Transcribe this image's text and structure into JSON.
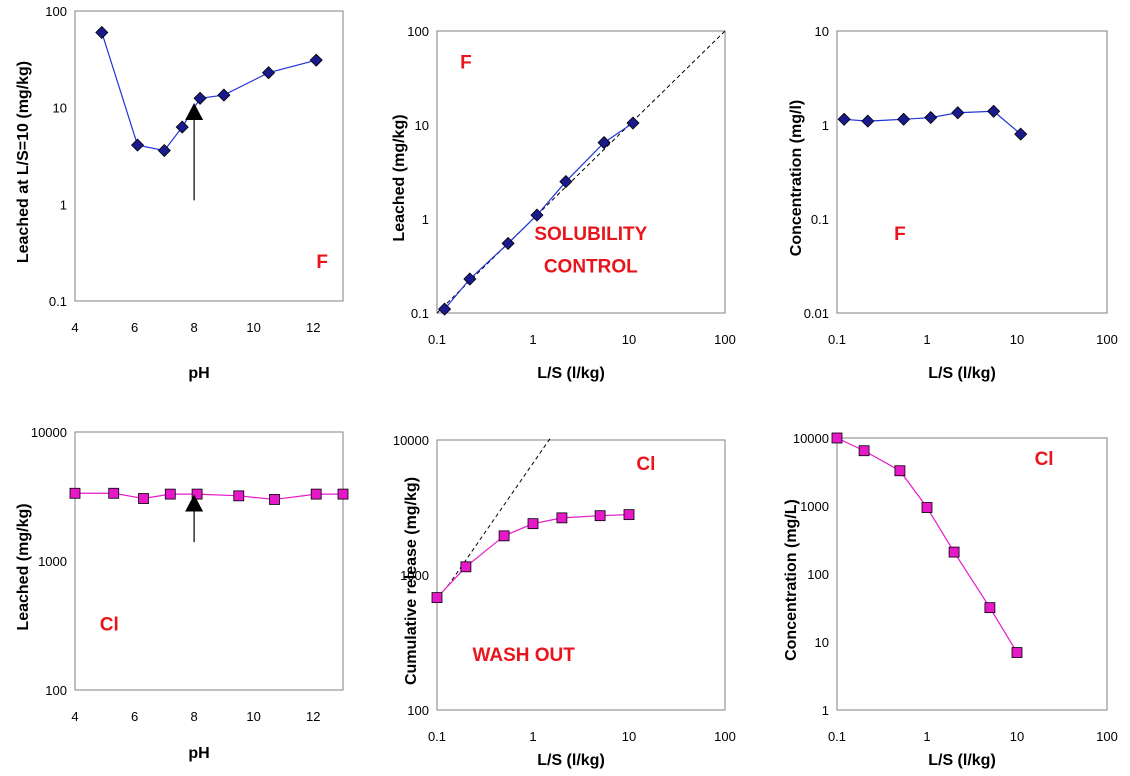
{
  "colors": {
    "f_series": "#1a1a8c",
    "f_series_line": "#1f35d6",
    "cl_series": "#e619c8",
    "cl_series_line": "#e619c8",
    "annotation": "#e8161c",
    "reference_line": "#000000"
  },
  "chart_data": [
    {
      "type": "scatter",
      "element": "F",
      "x_scale": "linear",
      "y_scale": "log",
      "xlim": [
        4,
        13
      ],
      "ylim": [
        0.1,
        100
      ],
      "xticks": [
        "4",
        "6",
        "8",
        "10",
        "12"
      ],
      "yticks": [
        "0.1",
        "1",
        "10",
        "100"
      ],
      "xlabel": "pH",
      "ylabel": "Leached at L/S=10 (mg/kg)",
      "annotations": [
        {
          "text": "F",
          "x": 12.3,
          "y": 0.22
        }
      ],
      "series": [
        {
          "marker": "diamond",
          "points": [
            [
              4.9,
              60
            ],
            [
              6.1,
              4.1
            ],
            [
              7.0,
              3.6
            ],
            [
              7.6,
              6.3
            ],
            [
              8.2,
              12.5
            ],
            [
              9.0,
              13.5
            ],
            [
              10.5,
              23
            ],
            [
              12.1,
              31
            ]
          ]
        }
      ],
      "arrow": {
        "x": 8.0,
        "y_from": 1.1,
        "y_to": 8.0
      }
    },
    {
      "type": "scatter",
      "element": "F",
      "x_scale": "log",
      "y_scale": "log",
      "xlim": [
        0.1,
        100
      ],
      "ylim": [
        0.1,
        100
      ],
      "xticks": [
        "0.1",
        "1",
        "10",
        "100"
      ],
      "yticks": [
        "0.1",
        "1",
        "10",
        "100"
      ],
      "xlabel": "L/S (l/kg)",
      "ylabel": "Leached (mg/kg)",
      "annotations": [
        {
          "text": "F",
          "x": 0.2,
          "y": 40
        },
        {
          "text": "SOLUBILITY",
          "x": 4.0,
          "y": 0.6
        },
        {
          "text": "CONTROL",
          "x": 4.0,
          "y": 0.27
        }
      ],
      "series": [
        {
          "marker": "diamond",
          "points": [
            [
              0.12,
              0.11
            ],
            [
              0.22,
              0.23
            ],
            [
              0.55,
              0.55
            ],
            [
              1.1,
              1.1
            ],
            [
              2.2,
              2.5
            ],
            [
              5.5,
              6.5
            ],
            [
              11,
              10.5
            ]
          ]
        }
      ],
      "reference_line": {
        "style": "dashed",
        "points": [
          [
            0.1,
            0.1
          ],
          [
            100,
            100
          ]
        ]
      }
    },
    {
      "type": "scatter",
      "element": "F",
      "x_scale": "log",
      "y_scale": "log",
      "xlim": [
        0.1,
        100
      ],
      "ylim": [
        0.01,
        10
      ],
      "xticks": [
        "0.1",
        "1",
        "10",
        "100"
      ],
      "yticks": [
        "0.01",
        "0.1",
        "1",
        "10"
      ],
      "xlabel": "L/S (l/kg)",
      "ylabel": "Concentration (mg/l)",
      "annotations": [
        {
          "text": "F",
          "x": 0.5,
          "y": 0.06
        }
      ],
      "series": [
        {
          "marker": "diamond",
          "points": [
            [
              0.12,
              1.15
            ],
            [
              0.22,
              1.1
            ],
            [
              0.55,
              1.15
            ],
            [
              1.1,
              1.2
            ],
            [
              2.2,
              1.35
            ],
            [
              5.5,
              1.4
            ],
            [
              11,
              0.8
            ]
          ]
        }
      ]
    },
    {
      "type": "scatter",
      "element": "Cl",
      "x_scale": "linear",
      "y_scale": "log",
      "xlim": [
        4,
        13
      ],
      "ylim": [
        100,
        10000
      ],
      "xticks": [
        "4",
        "6",
        "8",
        "10",
        "12"
      ],
      "yticks": [
        "100",
        "1000",
        "10000"
      ],
      "xlabel": "pH",
      "ylabel": "Leached (mg/kg)",
      "annotations": [
        {
          "text": "Cl",
          "x": 5.15,
          "y": 290
        }
      ],
      "series": [
        {
          "marker": "square",
          "points": [
            [
              4.0,
              3350
            ],
            [
              5.3,
              3350
            ],
            [
              6.3,
              3050
            ],
            [
              7.2,
              3300
            ],
            [
              8.1,
              3300
            ],
            [
              9.5,
              3200
            ],
            [
              10.7,
              3000
            ],
            [
              12.1,
              3300
            ],
            [
              13.0,
              3300
            ]
          ]
        }
      ],
      "arrow": {
        "x": 8.0,
        "y_from": 1400,
        "y_to": 2550
      }
    },
    {
      "type": "scatter",
      "element": "Cl",
      "x_scale": "log",
      "y_scale": "log",
      "xlim": [
        0.1,
        100
      ],
      "ylim": [
        100,
        10000
      ],
      "xticks": [
        "0.1",
        "1",
        "10",
        "100"
      ],
      "yticks": [
        "100",
        "1000",
        "10000"
      ],
      "xlabel": "L/S (l/kg)",
      "ylabel": "Cumulative release (mg/kg)",
      "annotations": [
        {
          "text": "Cl",
          "x": 15,
          "y": 6000
        },
        {
          "text": "WASH OUT",
          "x": 0.8,
          "y": 230
        }
      ],
      "series": [
        {
          "marker": "square",
          "points": [
            [
              0.1,
              680
            ],
            [
              0.2,
              1150
            ],
            [
              0.5,
              1950
            ],
            [
              1.0,
              2400
            ],
            [
              2.0,
              2650
            ],
            [
              5.0,
              2750
            ],
            [
              10,
              2800
            ]
          ]
        }
      ],
      "reference_line": {
        "style": "dashed",
        "points": [
          [
            0.13,
            830
          ],
          [
            1.5,
            10200
          ]
        ]
      }
    },
    {
      "type": "scatter",
      "element": "Cl",
      "x_scale": "log",
      "y_scale": "log",
      "xlim": [
        0.1,
        100
      ],
      "ylim": [
        1,
        10000
      ],
      "xticks": [
        "0.1",
        "1",
        "10",
        "100"
      ],
      "yticks": [
        "1",
        "10",
        "100",
        "1000",
        "10000"
      ],
      "xlabel": "L/S (l/kg)",
      "ylabel": "Concentration (mg/L)",
      "annotations": [
        {
          "text": "Cl",
          "x": 20,
          "y": 4000
        }
      ],
      "series": [
        {
          "marker": "square",
          "points": [
            [
              0.1,
              10000
            ],
            [
              0.2,
              6500
            ],
            [
              0.5,
              3300
            ],
            [
              1.0,
              950
            ],
            [
              2.0,
              210
            ],
            [
              5.0,
              32
            ],
            [
              10,
              7
            ]
          ]
        }
      ]
    }
  ]
}
